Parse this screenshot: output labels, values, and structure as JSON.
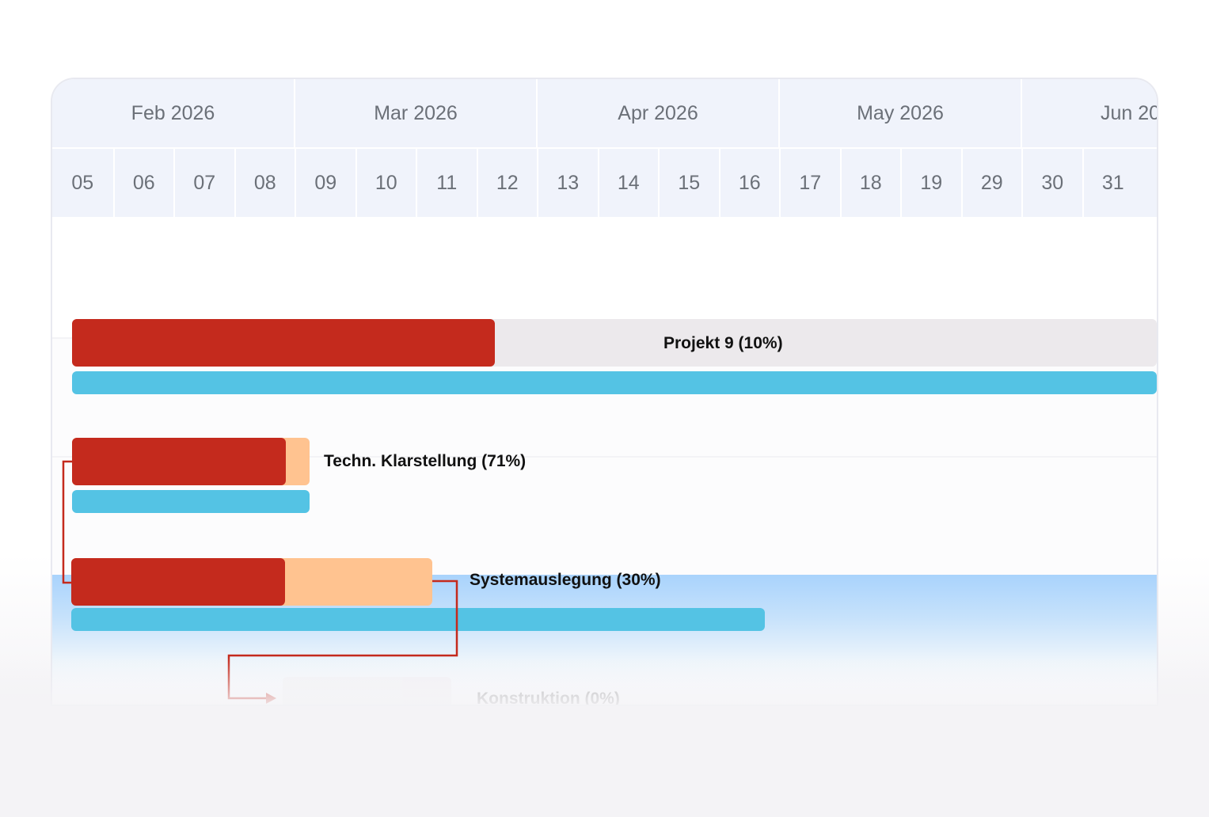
{
  "timeline": {
    "months": [
      {
        "label": "Feb 2026"
      },
      {
        "label": "Mar 2026"
      },
      {
        "label": "Apr 2026"
      },
      {
        "label": "May 2026"
      },
      {
        "label": "Jun 20"
      }
    ],
    "weeks": [
      "05",
      "06",
      "07",
      "08",
      "09",
      "10",
      "11",
      "12",
      "13",
      "14",
      "15",
      "16",
      "17",
      "18",
      "19",
      "29",
      "30",
      "31"
    ]
  },
  "tasks": [
    {
      "name": "Projekt 9",
      "progress": 10,
      "label": "Projekt 9 (10%)"
    },
    {
      "name": "Techn. Klarstellung",
      "progress": 71,
      "label": "Techn. Klarstellung (71%)"
    },
    {
      "name": "Systemauslegung",
      "progress": 30,
      "label": "Systemauslegung (30%)"
    },
    {
      "name": "Konstruktion",
      "progress": 0,
      "label": "Konstruktion (0%)"
    }
  ],
  "colors": {
    "progress": "#c42a1d",
    "remaining": "#ffc390",
    "timeline": "#54c3e4",
    "dependency": "#c42a1d",
    "header_bg": "#f0f3fb"
  }
}
